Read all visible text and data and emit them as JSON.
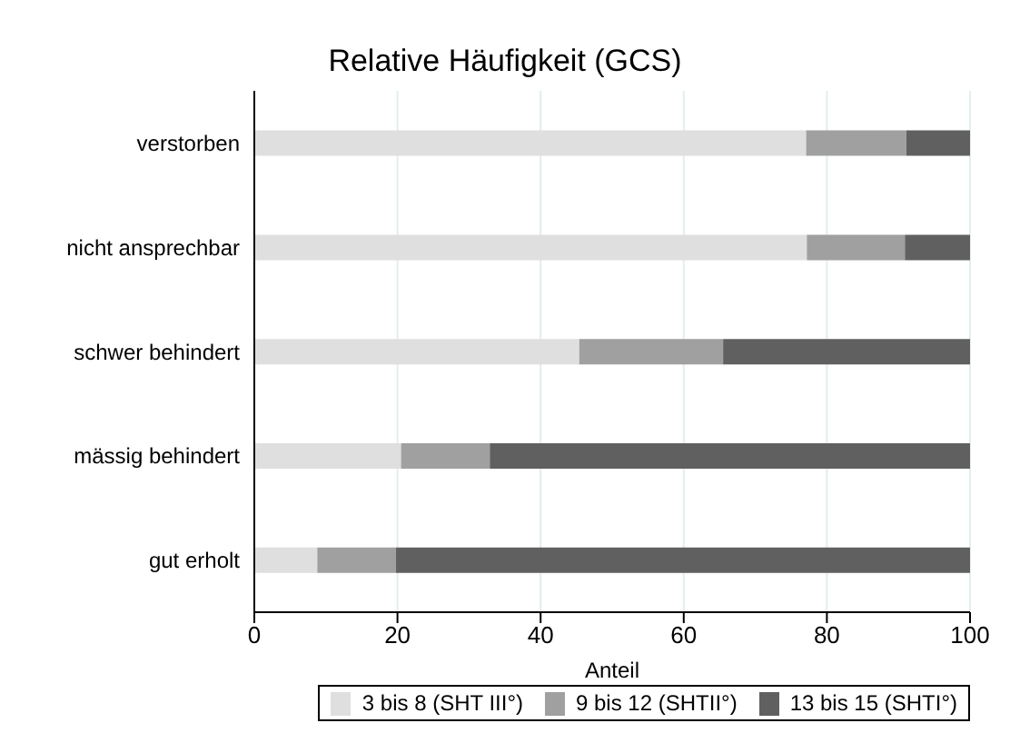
{
  "chart_data": {
    "type": "bar",
    "orientation": "horizontal",
    "stacked": true,
    "title": "Relative Häufigkeit (GCS)",
    "xlabel": "Anteil",
    "categories": [
      "verstorben",
      "nicht ansprechbar",
      "schwer behindert",
      "mässig behindert",
      "gut erholt"
    ],
    "series": [
      {
        "name": "3 bis 8 (SHT III°)",
        "color": "#dfdfdf",
        "values": [
          77.1,
          77.2,
          45.4,
          20.5,
          8.8
        ]
      },
      {
        "name": "9 bis 12 (SHTII°)",
        "color": "#a0a0a0",
        "values": [
          14,
          13.7,
          20.1,
          12.4,
          11
        ]
      },
      {
        "name": "13 bis 15 (SHTI°)",
        "color": "#606060",
        "values": [
          8.9,
          9.1,
          34.5,
          67.1,
          80.2
        ]
      }
    ],
    "xlim": [
      0,
      100
    ],
    "xticks": [
      0,
      20,
      40,
      60,
      80,
      100
    ],
    "grid": "x",
    "legend": "bottom"
  }
}
